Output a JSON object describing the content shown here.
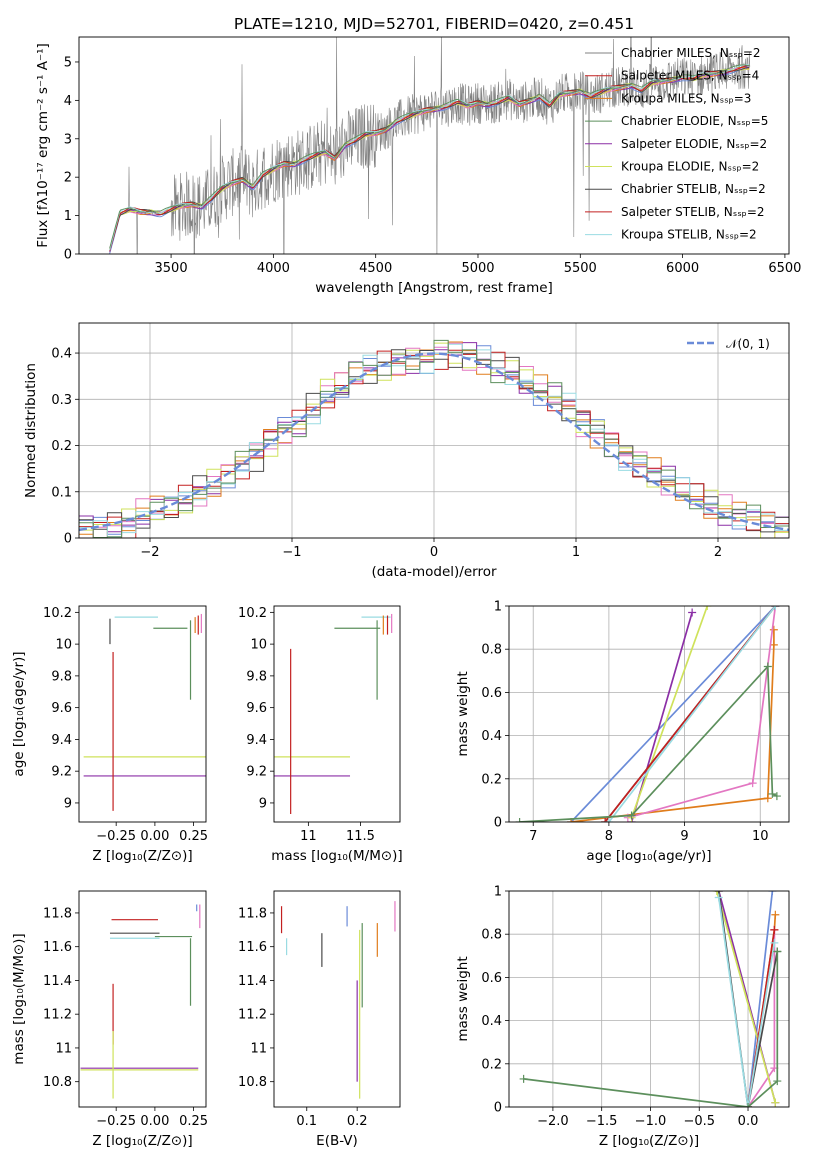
{
  "figure": {
    "title": "PLATE=1210, MJD=52701, FIBERID=0420, z=0.451"
  },
  "colors": {
    "spectrum": "#808080",
    "normal_curve": "#6a8bd8",
    "grid": "#b0b0b0",
    "models": [
      "#6a8bd8",
      "#8b2fa6",
      "#e07d1c",
      "#e377c2",
      "#cfe25b",
      "#4a4a4a",
      "#c32020",
      "#9adbe2",
      "#5c8f5c"
    ]
  },
  "chart_data": [
    {
      "id": "spectrum",
      "type": "line",
      "xlabel": "wavelength [Angstrom, rest frame]",
      "ylabel": "Flux [fλ10⁻¹⁷ erg cm⁻² s⁻¹ A⁻¹]",
      "xlim": [
        3050,
        6520
      ],
      "ylim": [
        0,
        5.65
      ],
      "xticks": [
        3500,
        4000,
        4500,
        5000,
        5500,
        6000,
        6500
      ],
      "yticks": [
        0,
        1,
        2,
        3,
        4,
        5
      ],
      "continuum": {
        "x": [
          3200,
          3250,
          3300,
          3350,
          3400,
          3450,
          3500,
          3550,
          3600,
          3650,
          3700,
          3750,
          3800,
          3850,
          3900,
          3950,
          4000,
          4050,
          4100,
          4150,
          4200,
          4250,
          4300,
          4350,
          4400,
          4450,
          4500,
          4550,
          4600,
          4650,
          4700,
          4750,
          4800,
          4850,
          4900,
          4950,
          5000,
          5050,
          5100,
          5150,
          5200,
          5250,
          5300,
          5350,
          5400,
          5450,
          5500,
          5550,
          5600,
          5650,
          5700,
          5750,
          5800,
          5850,
          5900,
          5950,
          6000,
          6050,
          6100,
          6150,
          6200,
          6250,
          6300,
          6330
        ],
        "y": [
          0.1,
          1.05,
          1.15,
          1.1,
          1.1,
          1.05,
          1.15,
          1.25,
          1.3,
          1.25,
          1.45,
          1.7,
          1.85,
          1.95,
          1.75,
          2.05,
          2.2,
          2.35,
          2.35,
          2.45,
          2.55,
          2.65,
          2.5,
          2.85,
          2.95,
          3.1,
          3.15,
          3.25,
          3.45,
          3.55,
          3.65,
          3.75,
          3.8,
          3.85,
          3.95,
          3.85,
          3.95,
          3.9,
          3.95,
          4.05,
          3.9,
          4.0,
          4.1,
          3.85,
          4.15,
          4.2,
          4.25,
          4.1,
          4.2,
          4.3,
          4.35,
          4.4,
          4.25,
          4.45,
          4.5,
          4.55,
          4.6,
          4.55,
          4.65,
          4.7,
          4.75,
          4.8,
          4.85,
          4.85
        ]
      },
      "legend_position": "upper-right",
      "legend": [
        "Chabrier MILES, Nₛₛₚ=2",
        "Salpeter MILES, Nₛₛₚ=4",
        "Kroupa MILES, Nₛₛₚ=3",
        "Chabrier ELODIE, Nₛₛₚ=5",
        "Salpeter ELODIE, Nₛₛₚ=2",
        "Kroupa ELODIE, Nₛₛₚ=2",
        "Chabrier STELIB, Nₛₛₚ=2",
        "Salpeter STELIB, Nₛₛₚ=2",
        "Kroupa STELIB, Nₛₛₚ=2"
      ],
      "legend_colors": [
        "#808080",
        "#c32020",
        "#e07d1c",
        "#5c8f5c",
        "#8b2fa6",
        "#cfe25b",
        "#4a4a4a",
        "#c32020",
        "#9adbe2"
      ]
    },
    {
      "id": "residuals",
      "type": "line",
      "xlabel": "(data-model)/error",
      "ylabel": "Normed distribution",
      "xlim": [
        -2.5,
        2.5
      ],
      "ylim": [
        0,
        0.465
      ],
      "xticks": [
        -2,
        -1,
        0,
        1,
        2
      ],
      "yticks": [
        0.0,
        0.1,
        0.2,
        0.3,
        0.4
      ],
      "grid": true,
      "legend_position": "upper-right",
      "legend": [
        "𝒩(0, 1)"
      ],
      "bin_width": 0.1,
      "histogram": [
        0.02,
        0.02,
        0.03,
        0.03,
        0.05,
        0.06,
        0.06,
        0.08,
        0.1,
        0.12,
        0.14,
        0.16,
        0.18,
        0.21,
        0.23,
        0.25,
        0.28,
        0.31,
        0.33,
        0.35,
        0.36,
        0.37,
        0.38,
        0.39,
        0.39,
        0.4,
        0.4,
        0.39,
        0.38,
        0.37,
        0.36,
        0.34,
        0.32,
        0.3,
        0.28,
        0.25,
        0.23,
        0.21,
        0.18,
        0.16,
        0.14,
        0.12,
        0.1,
        0.09,
        0.07,
        0.06,
        0.05,
        0.04,
        0.03,
        0.02
      ]
    },
    {
      "id": "Z-vs-age",
      "type": "scatter",
      "xlabel": "Z [log₁₀(Z/Z⊙)]",
      "ylabel": "age  [log₁₀(age/yr)]",
      "xlim": [
        -0.49,
        0.33
      ],
      "ylim": [
        8.88,
        10.24
      ],
      "xticks": [
        -0.25,
        0.0,
        0.25
      ],
      "xtick_labels": [
        "−0.25",
        "0.00",
        "0.25"
      ],
      "yticks": [
        9.0,
        9.2,
        9.4,
        9.6,
        9.8,
        10.0,
        10.2
      ],
      "points": [
        {
          "x": -0.03,
          "xerr": 0.43,
          "y": 9.17,
          "yerr": 0,
          "series": 1
        },
        {
          "x": -0.03,
          "xerr": 0.43,
          "y": 9.29,
          "yerr": 0,
          "series": 4
        },
        {
          "x": -0.27,
          "xerr": 0,
          "y": 9.45,
          "yerr": 0.5,
          "series": 6
        },
        {
          "x": -0.29,
          "xerr": 0,
          "y": 10.08,
          "yerr": 0.08,
          "series": 5
        },
        {
          "x": -0.12,
          "xerr": 0.14,
          "y": 10.17,
          "yerr": 0,
          "series": 7
        },
        {
          "x": 0.23,
          "xerr": 0,
          "y": 9.9,
          "yerr": 0.25,
          "series": 8
        },
        {
          "x": 0.1,
          "xerr": 0.11,
          "y": 10.1,
          "yerr": 0,
          "series": 8
        },
        {
          "x": 0.26,
          "xerr": 0,
          "y": 10.12,
          "yerr": 0.05,
          "series": 2
        },
        {
          "x": 0.28,
          "xerr": 0,
          "y": 10.12,
          "yerr": 0.06,
          "series": 6
        },
        {
          "x": 0.3,
          "xerr": 0,
          "y": 10.13,
          "yerr": 0.06,
          "series": 3
        }
      ]
    },
    {
      "id": "mass-vs-age",
      "type": "scatter",
      "xlabel": "mass [log₁₀(M/M⊙)]",
      "ylabel": "",
      "xlim": [
        10.67,
        11.88
      ],
      "ylim": [
        8.88,
        10.24
      ],
      "xticks": [
        11.0,
        11.5
      ],
      "yticks": [
        9.0,
        9.2,
        9.4,
        9.6,
        9.8,
        10.0,
        10.2
      ],
      "points": [
        {
          "x": 10.95,
          "xerr": 0.45,
          "y": 9.17,
          "yerr": 0,
          "series": 1
        },
        {
          "x": 10.95,
          "xerr": 0.45,
          "y": 9.29,
          "yerr": 0,
          "series": 4
        },
        {
          "x": 10.83,
          "xerr": 0,
          "y": 9.45,
          "yerr": 0.52,
          "series": 6
        },
        {
          "x": 11.47,
          "xerr": 0.22,
          "y": 10.1,
          "yerr": 0,
          "series": 8
        },
        {
          "x": 11.66,
          "xerr": 0,
          "y": 9.9,
          "yerr": 0.25,
          "series": 8
        },
        {
          "x": 11.65,
          "xerr": 0.14,
          "y": 10.17,
          "yerr": 0,
          "series": 7
        },
        {
          "x": 11.72,
          "xerr": 0,
          "y": 10.12,
          "yerr": 0.06,
          "series": 2
        },
        {
          "x": 11.76,
          "xerr": 0,
          "y": 10.12,
          "yerr": 0.06,
          "series": 6
        },
        {
          "x": 11.8,
          "xerr": 0,
          "y": 10.13,
          "yerr": 0.06,
          "series": 3
        }
      ]
    },
    {
      "id": "age-vs-mass-weight",
      "type": "line",
      "xlabel": "age  [log₁₀(age/yr)]",
      "ylabel": "mass weight",
      "xlim": [
        6.68,
        10.38
      ],
      "ylim": [
        0,
        1.0
      ],
      "xticks": [
        7,
        8,
        9,
        10
      ],
      "yticks": [
        0.0,
        0.2,
        0.4,
        0.6,
        0.8,
        1.0
      ],
      "grid": true,
      "series": [
        {
          "x": [
            7.5,
            10.2
          ],
          "y": [
            0.0,
            1.0
          ],
          "color": "#6a8bd8"
        },
        {
          "x": [
            8.3,
            9.1
          ],
          "y": [
            0.0,
            0.97
          ],
          "color": "#8b2fa6"
        },
        {
          "x": [
            7.5,
            10.1,
            10.18,
            10.18
          ],
          "y": [
            0.0,
            0.11,
            0.82,
            0.89
          ],
          "color": "#e07d1c"
        },
        {
          "x": [
            8.25,
            9.9,
            10.2
          ],
          "y": [
            0.02,
            0.18,
            1.0
          ],
          "color": "#e377c2"
        },
        {
          "x": [
            8.3,
            9.3
          ],
          "y": [
            0.02,
            1.0
          ],
          "color": "#cfe25b"
        },
        {
          "x": [
            7.95,
            10.2
          ],
          "y": [
            0.0,
            1.0
          ],
          "color": "#4a4a4a"
        },
        {
          "x": [
            7.95,
            10.2
          ],
          "y": [
            0.0,
            1.0
          ],
          "color": "#c32020"
        },
        {
          "x": [
            8.0,
            10.2
          ],
          "y": [
            0.0,
            1.0
          ],
          "color": "#9adbe2"
        },
        {
          "x": [
            6.82,
            8.3,
            10.1,
            10.16,
            10.22
          ],
          "y": [
            0.0,
            0.03,
            0.72,
            0.13,
            0.12
          ],
          "color": "#5c8f5c"
        }
      ]
    },
    {
      "id": "Z-vs-mass",
      "type": "scatter",
      "xlabel": "Z [log₁₀(Z/Z⊙)]",
      "ylabel": "mass [log₁₀(M/M⊙)]",
      "xlim": [
        -0.49,
        0.33
      ],
      "ylim": [
        10.65,
        11.93
      ],
      "xticks": [
        -0.25,
        0.0,
        0.25
      ],
      "xtick_labels": [
        "−0.25",
        "0.00",
        "0.25"
      ],
      "yticks": [
        10.8,
        11.0,
        11.2,
        11.4,
        11.6,
        11.8
      ],
      "points": [
        {
          "x": -0.1,
          "xerr": 0.38,
          "y": 10.88,
          "yerr": 0,
          "series": 1
        },
        {
          "x": -0.1,
          "xerr": 0.38,
          "y": 10.87,
          "yerr": 0,
          "series": 4
        },
        {
          "x": -0.27,
          "xerr": 0,
          "y": 11.2,
          "yerr": 0.18,
          "series": 6
        },
        {
          "x": -0.27,
          "xerr": 0,
          "y": 10.9,
          "yerr": 0.2,
          "series": 4
        },
        {
          "x": -0.13,
          "xerr": 0.15,
          "y": 11.76,
          "yerr": 0,
          "series": 6
        },
        {
          "x": -0.13,
          "xerr": 0.16,
          "y": 11.68,
          "yerr": 0,
          "series": 5
        },
        {
          "x": -0.13,
          "xerr": 0.16,
          "y": 11.65,
          "yerr": 0,
          "series": 7
        },
        {
          "x": 0.12,
          "xerr": 0.12,
          "y": 11.66,
          "yerr": 0,
          "series": 8
        },
        {
          "x": 0.23,
          "xerr": 0,
          "y": 11.45,
          "yerr": 0.2,
          "series": 8
        },
        {
          "x": 0.27,
          "xerr": 0,
          "y": 11.83,
          "yerr": 0.02,
          "series": 0
        },
        {
          "x": 0.29,
          "xerr": 0,
          "y": 11.78,
          "yerr": 0.07,
          "series": 3
        }
      ]
    },
    {
      "id": "EBV-vs-mass",
      "type": "scatter",
      "xlabel": "E(B-V)",
      "ylabel": "",
      "xlim": [
        0.035,
        0.285
      ],
      "ylim": [
        10.65,
        11.93
      ],
      "xticks": [
        0.1,
        0.2
      ],
      "yticks": [
        10.8,
        11.0,
        11.2,
        11.4,
        11.6,
        11.8
      ],
      "points": [
        {
          "x": 0.05,
          "y": 11.76,
          "yerr": 0.08,
          "series": 6
        },
        {
          "x": 0.06,
          "y": 11.6,
          "yerr": 0.05,
          "series": 7
        },
        {
          "x": 0.13,
          "y": 11.58,
          "yerr": 0.1,
          "series": 5
        },
        {
          "x": 0.18,
          "y": 11.78,
          "yerr": 0.06,
          "series": 0
        },
        {
          "x": 0.2,
          "y": 11.1,
          "yerr": 0.3,
          "series": 1
        },
        {
          "x": 0.205,
          "y": 11.2,
          "yerr": 0.5,
          "series": 4
        },
        {
          "x": 0.21,
          "y": 11.49,
          "yerr": 0.25,
          "series": 8
        },
        {
          "x": 0.24,
          "y": 11.64,
          "yerr": 0.1,
          "series": 2
        },
        {
          "x": 0.275,
          "y": 11.78,
          "yerr": 0.09,
          "series": 3
        }
      ]
    },
    {
      "id": "Z-vs-mass-weight",
      "type": "line",
      "xlabel": "Z [log₁₀(Z/Z⊙)]",
      "ylabel": "mass weight",
      "xlim": [
        -2.45,
        0.42
      ],
      "ylim": [
        0,
        1.0
      ],
      "xticks": [
        -2.0,
        -1.5,
        -1.0,
        -0.5,
        0.0
      ],
      "xtick_labels": [
        "−2.0",
        "−1.5",
        "−1.0",
        "−0.5",
        "0.0"
      ],
      "yticks": [
        0.0,
        0.2,
        0.4,
        0.6,
        0.8,
        1.0
      ],
      "grid": true,
      "series": [
        {
          "x": [
            0.0,
            0.25
          ],
          "y": [
            0.0,
            1.0
          ],
          "color": "#6a8bd8"
        },
        {
          "x": [
            -0.3,
            0.28
          ],
          "y": [
            1.0,
            0.02
          ],
          "color": "#8b2fa6"
        },
        {
          "x": [
            0.0,
            0.27,
            0.28
          ],
          "y": [
            0.0,
            0.82,
            0.89
          ],
          "color": "#e07d1c"
        },
        {
          "x": [
            0.0,
            0.27,
            0.27
          ],
          "y": [
            0.0,
            0.18,
            0.82
          ],
          "color": "#e377c2"
        },
        {
          "x": [
            -0.32,
            0.28
          ],
          "y": [
            1.0,
            0.02
          ],
          "color": "#cfe25b"
        },
        {
          "x": [
            -0.3,
            0.0,
            0.3
          ],
          "y": [
            1.0,
            0.0,
            0.72
          ],
          "color": "#4a4a4a"
        },
        {
          "x": [
            0.0,
            0.27
          ],
          "y": [
            0.0,
            0.82
          ],
          "color": "#c32020"
        },
        {
          "x": [
            -0.3,
            0.0,
            0.27
          ],
          "y": [
            0.97,
            0.0,
            0.76
          ],
          "color": "#9adbe2"
        },
        {
          "x": [
            -2.3,
            0.0,
            0.3,
            0.3
          ],
          "y": [
            0.13,
            0.0,
            0.12,
            0.72
          ],
          "color": "#5c8f5c"
        }
      ]
    }
  ]
}
